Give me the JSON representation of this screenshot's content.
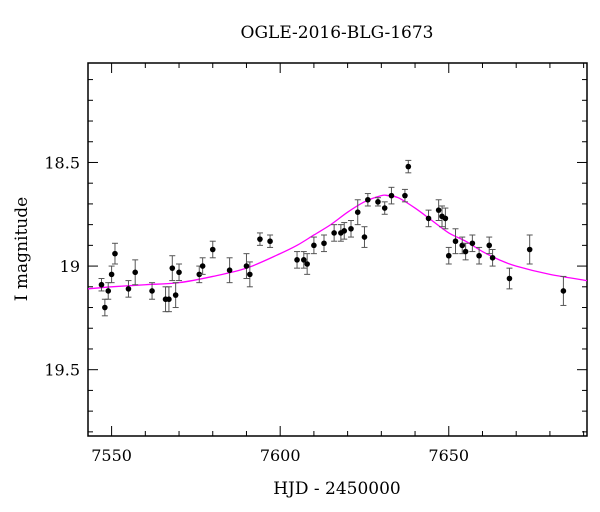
{
  "chart_data": {
    "type": "scatter",
    "title": "OGLE-2016-BLG-1673",
    "xlabel": "HJD - 2450000",
    "ylabel": "I magnitude",
    "xlim": [
      7543,
      7691
    ],
    "ylim": [
      19.82,
      18.02
    ],
    "y_inverted": true,
    "x_major_ticks": [
      7550,
      7600,
      7650
    ],
    "x_minor_step": 10,
    "y_major_ticks": [
      18.5,
      19,
      19.5
    ],
    "y_tick_labels": [
      "18.5",
      "19",
      "19.5"
    ],
    "y_minor_step": 0.1,
    "grid": false,
    "colors": {
      "points": "#000000",
      "errorbars": "#555555",
      "model": "#ff00ff",
      "frame": "#000000"
    },
    "series": [
      {
        "kind": "points_with_errorbars",
        "x": [
          7547,
          7548,
          7549,
          7550,
          7551,
          7555,
          7557,
          7562,
          7566,
          7567,
          7568,
          7569,
          7570,
          7576,
          7577,
          7580,
          7585,
          7590,
          7591,
          7594,
          7597,
          7605,
          7607,
          7608,
          7610,
          7613,
          7616,
          7618,
          7619,
          7621,
          7623,
          7625,
          7626,
          7629,
          7631,
          7633,
          7637,
          7638,
          7644,
          7647,
          7648,
          7649,
          7650,
          7652,
          7654,
          7655,
          7657,
          7659,
          7662,
          7663,
          7668,
          7674,
          7684
        ],
        "y": [
          19.09,
          19.2,
          19.12,
          19.04,
          18.94,
          19.11,
          19.03,
          19.12,
          19.16,
          19.16,
          19.01,
          19.14,
          19.03,
          19.04,
          19.0,
          18.92,
          19.02,
          19.0,
          19.04,
          18.87,
          18.88,
          18.97,
          18.97,
          18.99,
          18.9,
          18.89,
          18.84,
          18.84,
          18.83,
          18.82,
          18.74,
          18.86,
          18.68,
          18.69,
          18.72,
          18.66,
          18.66,
          18.52,
          18.77,
          18.73,
          18.76,
          18.77,
          18.95,
          18.88,
          18.9,
          18.93,
          18.89,
          18.95,
          18.9,
          18.96,
          19.06,
          18.92,
          19.12
        ],
        "yerr": [
          0.03,
          0.04,
          0.04,
          0.04,
          0.05,
          0.04,
          0.06,
          0.04,
          0.06,
          0.06,
          0.06,
          0.06,
          0.04,
          0.04,
          0.04,
          0.04,
          0.06,
          0.06,
          0.06,
          0.03,
          0.03,
          0.04,
          0.04,
          0.05,
          0.04,
          0.04,
          0.04,
          0.04,
          0.04,
          0.04,
          0.06,
          0.05,
          0.03,
          0.02,
          0.03,
          0.04,
          0.03,
          0.03,
          0.04,
          0.05,
          0.05,
          0.05,
          0.04,
          0.06,
          0.04,
          0.04,
          0.04,
          0.04,
          0.04,
          0.04,
          0.05,
          0.07,
          0.07
        ]
      },
      {
        "kind": "model_curve",
        "x": [
          7543,
          7550,
          7560,
          7570,
          7580,
          7590,
          7600,
          7605,
          7610,
          7615,
          7620,
          7625,
          7630,
          7632,
          7635,
          7640,
          7645,
          7650,
          7655,
          7660,
          7665,
          7670,
          7680,
          7691
        ],
        "y": [
          19.11,
          19.1,
          19.09,
          19.08,
          19.05,
          19.01,
          18.94,
          18.9,
          18.85,
          18.8,
          18.74,
          18.69,
          18.66,
          18.66,
          18.67,
          18.72,
          18.78,
          18.84,
          18.88,
          18.93,
          18.97,
          19.0,
          19.04,
          19.07
        ]
      }
    ]
  }
}
